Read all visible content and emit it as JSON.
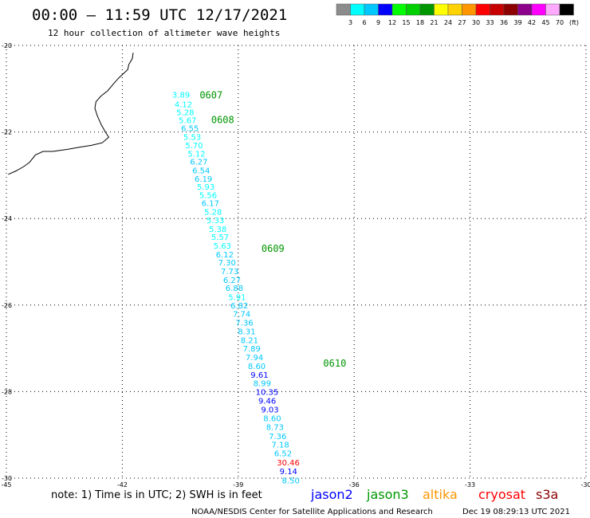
{
  "header": {
    "title": "00:00 — 11:59 UTC 12/17/2021",
    "subtitle": "12 hour collection of altimeter wave heights"
  },
  "legend": {
    "unit": "(ft)",
    "bins": [
      {
        "label": "3",
        "color": "#8c8c8c"
      },
      {
        "label": "6",
        "color": "#00ffff"
      },
      {
        "label": "9",
        "color": "#00c8ff"
      },
      {
        "label": "12",
        "color": "#0000ff"
      },
      {
        "label": "15",
        "color": "#00ff00"
      },
      {
        "label": "18",
        "color": "#00d000"
      },
      {
        "label": "21",
        "color": "#009600"
      },
      {
        "label": "24",
        "color": "#ffff00"
      },
      {
        "label": "27",
        "color": "#ffd200"
      },
      {
        "label": "30",
        "color": "#ff9600"
      },
      {
        "label": "33",
        "color": "#ff0000"
      },
      {
        "label": "36",
        "color": "#c80000"
      },
      {
        "label": "39",
        "color": "#8c0000"
      },
      {
        "label": "42",
        "color": "#8c008c"
      },
      {
        "label": "45",
        "color": "#ff00ff"
      },
      {
        "label": "70",
        "color": "#ffaaff"
      },
      {
        "label": "",
        "color": "#000000"
      }
    ]
  },
  "footer": {
    "note": "note: 1) Time is in UTC; 2) SWH is in feet",
    "satellites": [
      {
        "name": "jason2",
        "color": "#0000ff"
      },
      {
        "name": "jason3",
        "color": "#009600"
      },
      {
        "name": "altika",
        "color": "#ff9600"
      },
      {
        "name": "cryosat",
        "color": "#ff0000"
      },
      {
        "name": "s3a",
        "color": "#8c0000"
      }
    ],
    "credit": "NOAA/NESDIS Center for Satellite Applications and Research",
    "timestamp": "Dec 19 08:29:13 UTC 2021"
  },
  "chart_data": {
    "type": "scatter",
    "xlim": [
      -45,
      -30
    ],
    "ylim": [
      -30,
      -20
    ],
    "x_ticks": [
      "-45",
      "-42",
      "-39",
      "-36",
      "-33",
      "-30"
    ],
    "y_ticks": [
      "-20",
      "-22",
      "-24",
      "-26",
      "-28",
      "-30"
    ],
    "grid": true,
    "time_labels": [
      {
        "label": "0607",
        "x": -40.0,
        "y": -21.15
      },
      {
        "label": "0608",
        "x": -39.7,
        "y": -21.72
      },
      {
        "label": "0609",
        "x": -38.4,
        "y": -24.7
      },
      {
        "label": "0610",
        "x": -36.8,
        "y": -27.35
      }
    ],
    "points": [
      {
        "label": "3.89",
        "x": -40.71,
        "y": -21.15,
        "color": "#00ffff"
      },
      {
        "label": "4.12",
        "x": -40.65,
        "y": -21.37,
        "color": "#00ffff"
      },
      {
        "label": "5.28",
        "x": -40.6,
        "y": -21.56,
        "color": "#00ffff"
      },
      {
        "label": "5.67",
        "x": -40.54,
        "y": -21.74,
        "color": "#00ffff"
      },
      {
        "label": "6.55",
        "x": -40.48,
        "y": -21.92,
        "color": "#00c8ff"
      },
      {
        "label": "5.53",
        "x": -40.42,
        "y": -22.13,
        "color": "#00ffff"
      },
      {
        "label": "5.70",
        "x": -40.37,
        "y": -22.32,
        "color": "#00ffff"
      },
      {
        "label": "5.12",
        "x": -40.31,
        "y": -22.51,
        "color": "#00ffff"
      },
      {
        "label": "6.27",
        "x": -40.25,
        "y": -22.7,
        "color": "#00c8ff"
      },
      {
        "label": "6.54",
        "x": -40.19,
        "y": -22.9,
        "color": "#00c8ff"
      },
      {
        "label": "6.19",
        "x": -40.13,
        "y": -23.09,
        "color": "#00c8ff"
      },
      {
        "label": "5.93",
        "x": -40.07,
        "y": -23.28,
        "color": "#00ffff"
      },
      {
        "label": "5.56",
        "x": -40.01,
        "y": -23.47,
        "color": "#00ffff"
      },
      {
        "label": "6.17",
        "x": -39.95,
        "y": -23.66,
        "color": "#00c8ff"
      },
      {
        "label": "5.28",
        "x": -39.88,
        "y": -23.86,
        "color": "#00ffff"
      },
      {
        "label": "5.33",
        "x": -39.82,
        "y": -24.05,
        "color": "#00ffff"
      },
      {
        "label": "5.38",
        "x": -39.76,
        "y": -24.25,
        "color": "#00ffff"
      },
      {
        "label": "5.57",
        "x": -39.7,
        "y": -24.44,
        "color": "#00ffff"
      },
      {
        "label": "5.63",
        "x": -39.64,
        "y": -24.64,
        "color": "#00ffff"
      },
      {
        "label": "6.12",
        "x": -39.58,
        "y": -24.84,
        "color": "#00c8ff"
      },
      {
        "label": "7.30",
        "x": -39.52,
        "y": -25.03,
        "color": "#00c8ff"
      },
      {
        "label": "7.73",
        "x": -39.45,
        "y": -25.23,
        "color": "#00c8ff"
      },
      {
        "label": "6.27",
        "x": -39.39,
        "y": -25.43,
        "color": "#00c8ff"
      },
      {
        "label": "6.88",
        "x": -39.33,
        "y": -25.62,
        "color": "#00c8ff"
      },
      {
        "label": "5.91",
        "x": -39.26,
        "y": -25.83,
        "color": "#00ffff"
      },
      {
        "label": "6.82",
        "x": -39.2,
        "y": -26.02,
        "color": "#00c8ff"
      },
      {
        "label": "7.74",
        "x": -39.14,
        "y": -26.22,
        "color": "#00c8ff"
      },
      {
        "label": "7.36",
        "x": -39.07,
        "y": -26.42,
        "color": "#00c8ff"
      },
      {
        "label": "8.31",
        "x": -39.01,
        "y": -26.62,
        "color": "#00c8ff"
      },
      {
        "label": "8.21",
        "x": -38.94,
        "y": -26.82,
        "color": "#00c8ff"
      },
      {
        "label": "7.89",
        "x": -38.88,
        "y": -27.02,
        "color": "#00c8ff"
      },
      {
        "label": "7.94",
        "x": -38.81,
        "y": -27.22,
        "color": "#00c8ff"
      },
      {
        "label": "8.60",
        "x": -38.75,
        "y": -27.42,
        "color": "#00c8ff"
      },
      {
        "label": "9.61",
        "x": -38.68,
        "y": -27.62,
        "color": "#0000ff"
      },
      {
        "label": "8.99",
        "x": -38.61,
        "y": -27.82,
        "color": "#00c8ff"
      },
      {
        "label": "10.35",
        "x": -38.55,
        "y": -28.02,
        "color": "#0000ff"
      },
      {
        "label": "9.46",
        "x": -38.48,
        "y": -28.22,
        "color": "#0000ff"
      },
      {
        "label": "9.03",
        "x": -38.41,
        "y": -28.43,
        "color": "#0000ff"
      },
      {
        "label": "8.60",
        "x": -38.35,
        "y": -28.63,
        "color": "#00c8ff"
      },
      {
        "label": "8.73",
        "x": -38.28,
        "y": -28.83,
        "color": "#00c8ff"
      },
      {
        "label": "7.36",
        "x": -38.21,
        "y": -29.04,
        "color": "#00c8ff"
      },
      {
        "label": "7.18",
        "x": -38.14,
        "y": -29.24,
        "color": "#00c8ff"
      },
      {
        "label": "6.52",
        "x": -38.07,
        "y": -29.44,
        "color": "#00c8ff"
      },
      {
        "label": "30.46",
        "x": -38.0,
        "y": -29.65,
        "color": "#ff0000"
      },
      {
        "label": "9.14",
        "x": -37.93,
        "y": -29.85,
        "color": "#0000ff"
      },
      {
        "label": "8.50",
        "x": -37.87,
        "y": -30.06,
        "color": "#00c8ff"
      }
    ],
    "coastline": [
      [
        -41.72,
        -20.17
      ],
      [
        -41.74,
        -20.3
      ],
      [
        -41.83,
        -20.44
      ],
      [
        -41.86,
        -20.56
      ],
      [
        -42.09,
        -20.75
      ],
      [
        -42.22,
        -20.88
      ],
      [
        -42.38,
        -21.05
      ],
      [
        -42.55,
        -21.17
      ],
      [
        -42.68,
        -21.3
      ],
      [
        -42.71,
        -21.45
      ],
      [
        -42.65,
        -21.62
      ],
      [
        -42.55,
        -21.82
      ],
      [
        -42.44,
        -22.0
      ],
      [
        -42.35,
        -22.12
      ],
      [
        -42.52,
        -22.25
      ],
      [
        -42.8,
        -22.31
      ],
      [
        -43.1,
        -22.35
      ],
      [
        -43.4,
        -22.4
      ],
      [
        -43.8,
        -22.45
      ],
      [
        -44.05,
        -22.45
      ],
      [
        -44.25,
        -22.53
      ],
      [
        -44.4,
        -22.7
      ],
      [
        -44.55,
        -22.8
      ],
      [
        -44.75,
        -22.9
      ],
      [
        -44.95,
        -22.98
      ]
    ]
  }
}
